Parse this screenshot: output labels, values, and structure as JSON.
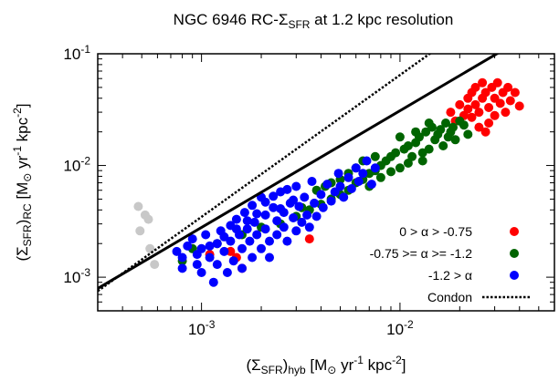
{
  "chart_data": {
    "type": "scatter",
    "title_parts": [
      "NGC 6946 RC-",
      "Σ",
      "SFR",
      " at 1.2 kpc resolution"
    ],
    "xlabel_parts": [
      "(Σ",
      "SFR",
      ")",
      "hyb",
      " [M",
      "⊙",
      " yr",
      "-1",
      " kpc",
      "-2",
      "]"
    ],
    "ylabel_parts": [
      "(Σ",
      "SFR",
      ")",
      "RC",
      " [M",
      "⊙",
      " yr",
      "-1",
      " kpc",
      "-2",
      "]"
    ],
    "x_log": true,
    "y_log": true,
    "xlim": [
      0.0003,
      0.06
    ],
    "ylim": [
      0.0005,
      0.1
    ],
    "x_ticks": [
      {
        "base": "10",
        "exp": "-3",
        "value": 0.001
      },
      {
        "base": "10",
        "exp": "-2",
        "value": 0.01
      }
    ],
    "y_ticks": [
      {
        "base": "10",
        "exp": "-3",
        "value": 0.001
      },
      {
        "base": "10",
        "exp": "-2",
        "value": 0.01
      },
      {
        "base": "10",
        "exp": "-1",
        "value": 0.1
      }
    ],
    "legend_position": "bottom-right",
    "series": [
      {
        "name": "0 > α > -0.75",
        "color": "#ff0000",
        "points": [
          [
            0.0011,
            0.0016
          ],
          [
            0.0014,
            0.0017
          ],
          [
            0.0015,
            0.0015
          ],
          [
            0.0016,
            0.0012
          ],
          [
            0.0035,
            0.0022
          ],
          [
            0.018,
            0.03
          ],
          [
            0.019,
            0.025
          ],
          [
            0.02,
            0.035
          ],
          [
            0.021,
            0.028
          ],
          [
            0.022,
            0.04
          ],
          [
            0.022,
            0.032
          ],
          [
            0.023,
            0.045
          ],
          [
            0.023,
            0.027
          ],
          [
            0.024,
            0.05
          ],
          [
            0.024,
            0.035
          ],
          [
            0.025,
            0.03
          ],
          [
            0.025,
            0.022
          ],
          [
            0.026,
            0.055
          ],
          [
            0.026,
            0.04
          ],
          [
            0.027,
            0.045
          ],
          [
            0.027,
            0.02
          ],
          [
            0.028,
            0.033
          ],
          [
            0.028,
            0.024
          ],
          [
            0.029,
            0.05
          ],
          [
            0.03,
            0.04
          ],
          [
            0.03,
            0.028
          ],
          [
            0.031,
            0.055
          ],
          [
            0.032,
            0.036
          ],
          [
            0.033,
            0.045
          ],
          [
            0.034,
            0.03
          ],
          [
            0.035,
            0.05
          ],
          [
            0.036,
            0.038
          ],
          [
            0.038,
            0.045
          ],
          [
            0.04,
            0.034
          ]
        ]
      },
      {
        "name": "-0.75 >= α >= -1.2",
        "color": "#006400",
        "points": [
          [
            0.0008,
            0.0014
          ],
          [
            0.0009,
            0.0018
          ],
          [
            0.0012,
            0.002
          ],
          [
            0.0016,
            0.0024
          ],
          [
            0.002,
            0.0028
          ],
          [
            0.0025,
            0.003
          ],
          [
            0.003,
            0.0035
          ],
          [
            0.0035,
            0.004
          ],
          [
            0.004,
            0.0045
          ],
          [
            0.0045,
            0.005
          ],
          [
            0.005,
            0.0055
          ],
          [
            0.0055,
            0.006
          ],
          [
            0.006,
            0.007
          ],
          [
            0.0065,
            0.0075
          ],
          [
            0.007,
            0.0085
          ],
          [
            0.0075,
            0.009
          ],
          [
            0.008,
            0.01
          ],
          [
            0.0085,
            0.011
          ],
          [
            0.009,
            0.012
          ],
          [
            0.0095,
            0.013
          ],
          [
            0.01,
            0.0095
          ],
          [
            0.0105,
            0.014
          ],
          [
            0.011,
            0.015
          ],
          [
            0.0115,
            0.012
          ],
          [
            0.012,
            0.016
          ],
          [
            0.0125,
            0.018
          ],
          [
            0.013,
            0.011
          ],
          [
            0.0135,
            0.02
          ],
          [
            0.014,
            0.014
          ],
          [
            0.0145,
            0.022
          ],
          [
            0.015,
            0.017
          ],
          [
            0.0155,
            0.019
          ],
          [
            0.016,
            0.021
          ],
          [
            0.0165,
            0.015
          ],
          [
            0.017,
            0.024
          ],
          [
            0.0175,
            0.018
          ],
          [
            0.018,
            0.02
          ],
          [
            0.0185,
            0.022
          ],
          [
            0.019,
            0.017
          ],
          [
            0.02,
            0.025
          ],
          [
            0.021,
            0.023
          ],
          [
            0.022,
            0.019
          ],
          [
            0.006,
            0.0095
          ],
          [
            0.0065,
            0.011
          ],
          [
            0.007,
            0.0065
          ],
          [
            0.0075,
            0.012
          ],
          [
            0.008,
            0.0078
          ],
          [
            0.009,
            0.0088
          ],
          [
            0.01,
            0.018
          ],
          [
            0.011,
            0.0105
          ],
          [
            0.012,
            0.02
          ],
          [
            0.013,
            0.013
          ],
          [
            0.014,
            0.024
          ],
          [
            0.0045,
            0.007
          ],
          [
            0.005,
            0.0075
          ],
          [
            0.0038,
            0.006
          ],
          [
            0.0042,
            0.0065
          ],
          [
            0.0055,
            0.0085
          ],
          [
            0.0032,
            0.0042
          ]
        ]
      },
      {
        "name": "-1.2 > α",
        "color": "#0000ff",
        "points": [
          [
            0.00075,
            0.0017
          ],
          [
            0.0008,
            0.0012
          ],
          [
            0.00085,
            0.0019
          ],
          [
            0.0009,
            0.0022
          ],
          [
            0.00095,
            0.0013
          ],
          [
            0.001,
            0.0018
          ],
          [
            0.001,
            0.0011
          ],
          [
            0.00105,
            0.0024
          ],
          [
            0.0011,
            0.0015
          ],
          [
            0.00115,
            0.0009
          ],
          [
            0.0012,
            0.002
          ],
          [
            0.0012,
            0.0013
          ],
          [
            0.00125,
            0.0026
          ],
          [
            0.0013,
            0.0017
          ],
          [
            0.00135,
            0.0011
          ],
          [
            0.0014,
            0.0029
          ],
          [
            0.0014,
            0.0021
          ],
          [
            0.00145,
            0.0014
          ],
          [
            0.0015,
            0.0033
          ],
          [
            0.00155,
            0.0024
          ],
          [
            0.0016,
            0.0018
          ],
          [
            0.0016,
            0.0012
          ],
          [
            0.00165,
            0.0038
          ],
          [
            0.0017,
            0.0027
          ],
          [
            0.00175,
            0.0021
          ],
          [
            0.0018,
            0.0015
          ],
          [
            0.0018,
            0.0044
          ],
          [
            0.00185,
            0.0031
          ],
          [
            0.0019,
            0.0024
          ],
          [
            0.002,
            0.0018
          ],
          [
            0.002,
            0.0052
          ],
          [
            0.0021,
            0.0036
          ],
          [
            0.0021,
            0.0027
          ],
          [
            0.0022,
            0.0021
          ],
          [
            0.0022,
            0.0015
          ],
          [
            0.0023,
            0.0042
          ],
          [
            0.0024,
            0.0032
          ],
          [
            0.0024,
            0.0024
          ],
          [
            0.0025,
            0.0058
          ],
          [
            0.0026,
            0.0038
          ],
          [
            0.0026,
            0.0028
          ],
          [
            0.0027,
            0.0021
          ],
          [
            0.0028,
            0.0046
          ],
          [
            0.0029,
            0.0034
          ],
          [
            0.003,
            0.0026
          ],
          [
            0.003,
            0.0065
          ],
          [
            0.0031,
            0.0043
          ],
          [
            0.0032,
            0.0031
          ],
          [
            0.0033,
            0.0052
          ],
          [
            0.0034,
            0.0036
          ],
          [
            0.0035,
            0.0028
          ],
          [
            0.0036,
            0.0072
          ],
          [
            0.0037,
            0.0046
          ],
          [
            0.0038,
            0.0035
          ],
          [
            0.004,
            0.0055
          ],
          [
            0.0041,
            0.0042
          ],
          [
            0.0043,
            0.0068
          ],
          [
            0.0045,
            0.0048
          ],
          [
            0.0047,
            0.0058
          ],
          [
            0.0049,
            0.0085
          ],
          [
            0.005,
            0.0065
          ],
          [
            0.0052,
            0.0052
          ],
          [
            0.0055,
            0.0078
          ],
          [
            0.0057,
            0.0062
          ],
          [
            0.006,
            0.0095
          ],
          [
            0.0062,
            0.0072
          ],
          [
            0.0065,
            0.0085
          ],
          [
            0.0068,
            0.011
          ],
          [
            0.0072,
            0.0068
          ],
          [
            0.0075,
            0.0095
          ],
          [
            0.0008,
            0.0015
          ],
          [
            0.00095,
            0.0016
          ],
          [
            0.0011,
            0.0019
          ],
          [
            0.0013,
            0.0023
          ],
          [
            0.0015,
            0.0027
          ],
          [
            0.0017,
            0.0032
          ],
          [
            0.0019,
            0.0037
          ],
          [
            0.0021,
            0.0047
          ],
          [
            0.0023,
            0.0053
          ],
          [
            0.0025,
            0.0041
          ],
          [
            0.0027,
            0.0061
          ],
          [
            0.0029,
            0.0049
          ]
        ]
      },
      {
        "name": "",
        "color": "#c8c8c8",
        "points": [
          [
            0.00048,
            0.0043
          ],
          [
            0.00052,
            0.0036
          ],
          [
            0.00049,
            0.0026
          ],
          [
            0.00055,
            0.0018
          ],
          [
            0.00058,
            0.0013
          ],
          [
            0.00054,
            0.0033
          ]
        ]
      }
    ],
    "lines": [
      {
        "name": "",
        "style": "solid",
        "color": "#000000",
        "slope": 1.045,
        "intercept": 0.58
      },
      {
        "name": "Condon",
        "style": "dotted",
        "color": "#000000",
        "slope": 1.27,
        "intercept": 1.35
      }
    ]
  }
}
